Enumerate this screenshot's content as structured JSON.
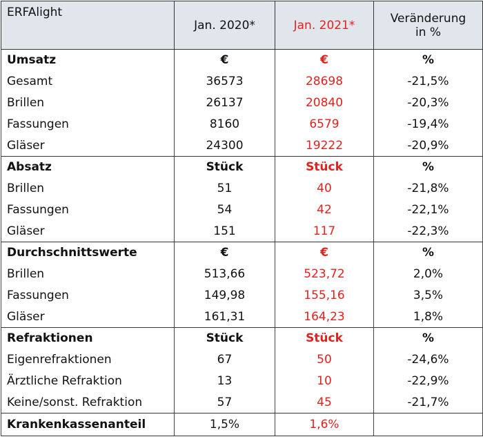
{
  "header": {
    "title": "ERFAlight",
    "col_2020": "Jan. 2020*",
    "col_2021": "Jan. 2021*",
    "change": "Veränderung in %"
  },
  "sections": [
    {
      "name": "Umsatz",
      "units": [
        "€",
        "€",
        "%"
      ],
      "rows": [
        [
          "Gesamt",
          "36573",
          "28698",
          "-21,5%"
        ],
        [
          "Brillen",
          "26137",
          "20840",
          "-20,3%"
        ],
        [
          "Fassungen",
          "8160",
          "6579",
          "-19,4%"
        ],
        [
          "Gläser",
          "24300",
          "19222",
          "-20,9%"
        ]
      ]
    },
    {
      "name": "Absatz",
      "units": [
        "Stück",
        "Stück",
        "%"
      ],
      "rows": [
        [
          "Brillen",
          "51",
          "40",
          "-21,8%"
        ],
        [
          "Fassungen",
          "54",
          "42",
          "-22,1%"
        ],
        [
          "Gläser",
          "151",
          "117",
          "-22,3%"
        ]
      ]
    },
    {
      "name": "Durchschnittswerte",
      "units": [
        "€",
        "€",
        "%"
      ],
      "rows": [
        [
          "Brillen",
          "513,66",
          "523,72",
          "2,0%"
        ],
        [
          "Fassungen",
          "149,98",
          "155,16",
          "3,5%"
        ],
        [
          "Gläser",
          "161,31",
          "164,23",
          "1,8%"
        ]
      ]
    },
    {
      "name": "Refraktionen",
      "units": [
        "Stück",
        "Stück",
        "%"
      ],
      "rows": [
        [
          "Eigenrefraktionen",
          "67",
          "50",
          "-24,6%"
        ],
        [
          "Ärztliche Refraktion",
          "13",
          "10",
          "-22,9%"
        ],
        [
          "Keine/sonst. Refraktion",
          "57",
          "45",
          "-21,7%"
        ]
      ]
    }
  ],
  "footer": [
    "Krankenkassenanteil",
    "1,5%",
    "1,6%"
  ]
}
